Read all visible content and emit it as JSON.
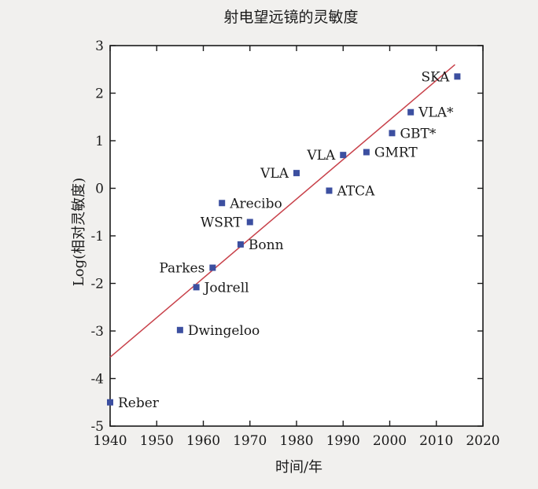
{
  "chart_data": {
    "type": "scatter",
    "title": "射电望远镜的灵敏度",
    "xlabel": "时间/年",
    "ylabel": "Log(相对灵敏度)",
    "xlim": [
      1940,
      2020
    ],
    "ylim": [
      -5,
      3
    ],
    "xticks": [
      "1940",
      "1950",
      "1960",
      "1970",
      "1980",
      "1990",
      "2000",
      "2010",
      "2020"
    ],
    "yticks": [
      "3",
      "2",
      "1",
      "0",
      "-1",
      "-2",
      "-3",
      "-4",
      "-5"
    ],
    "grid": false,
    "marker_color": "#3c4fa0",
    "trend_color": "#c8414a",
    "points": [
      {
        "label": "Reber",
        "x": 1940,
        "y": -4.5,
        "anchor": "right"
      },
      {
        "label": "Dwingeloo",
        "x": 1955,
        "y": -2.98,
        "anchor": "right"
      },
      {
        "label": "Jodrell",
        "x": 1958.5,
        "y": -2.08,
        "anchor": "right"
      },
      {
        "label": "Parkes",
        "x": 1962,
        "y": -1.67,
        "anchor": "left"
      },
      {
        "label": "Bonn",
        "x": 1968,
        "y": -1.18,
        "anchor": "right"
      },
      {
        "label": "WSRT",
        "x": 1970,
        "y": -0.71,
        "anchor": "left"
      },
      {
        "label": "Arecibo",
        "x": 1964,
        "y": -0.31,
        "anchor": "right"
      },
      {
        "label": "VLA",
        "x": 1980,
        "y": 0.32,
        "anchor": "left"
      },
      {
        "label": "ATCA",
        "x": 1987,
        "y": -0.05,
        "anchor": "right"
      },
      {
        "label": "VLA",
        "x": 1990,
        "y": 0.7,
        "anchor": "left"
      },
      {
        "label": "GMRT",
        "x": 1995,
        "y": 0.76,
        "anchor": "right"
      },
      {
        "label": "GBT*",
        "x": 2000.5,
        "y": 1.16,
        "anchor": "right"
      },
      {
        "label": "VLA*",
        "x": 2004.5,
        "y": 1.6,
        "anchor": "right"
      },
      {
        "label": "SKA",
        "x": 2014.5,
        "y": 2.35,
        "anchor": "left",
        "color": "#c8414a"
      }
    ],
    "trend_line": {
      "x": [
        1940,
        2014
      ],
      "y": [
        -3.55,
        2.6
      ]
    }
  }
}
